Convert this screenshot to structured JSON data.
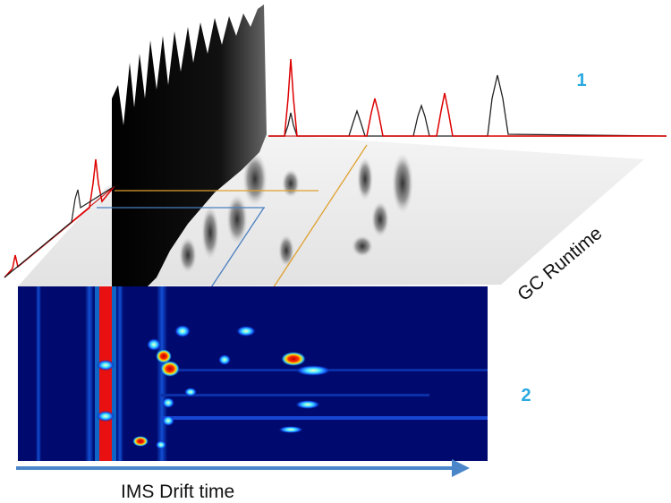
{
  "labels": {
    "top_number": "1",
    "bottom_number": "2",
    "gc_axis": "GC Runtime",
    "ims_axis": "IMS Drift time"
  }
}
